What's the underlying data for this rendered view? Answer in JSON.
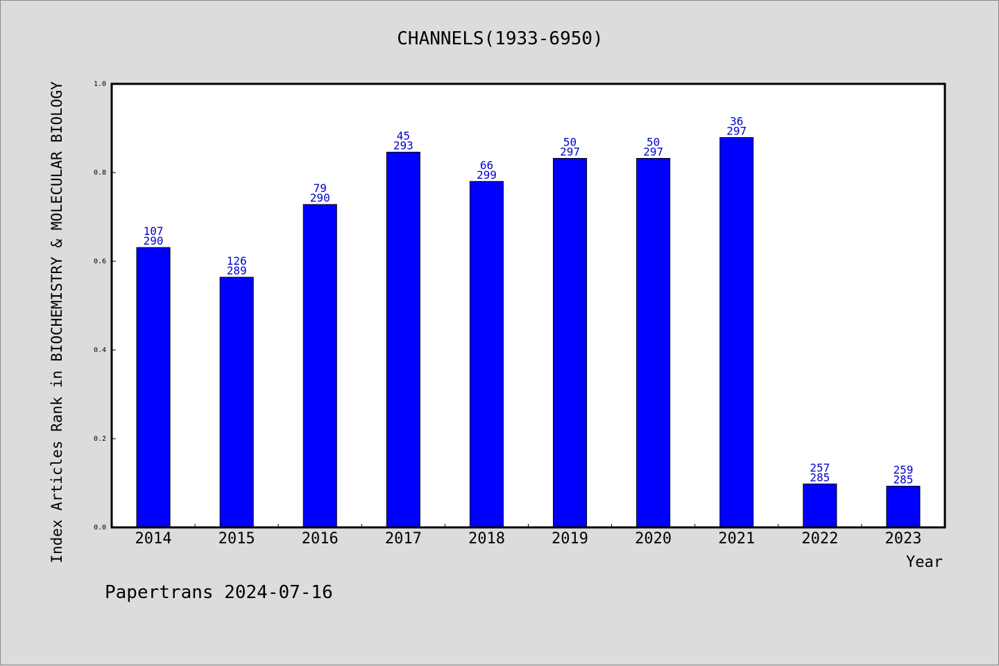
{
  "chart_data": {
    "type": "bar",
    "title": "CHANNELS(1933-6950)",
    "xlabel": "Year",
    "ylabel": "Index Articles Rank in BIOCHEMISTRY & MOLECULAR BIOLOGY",
    "categories": [
      "2014",
      "2015",
      "2016",
      "2017",
      "2018",
      "2019",
      "2020",
      "2021",
      "2022",
      "2023"
    ],
    "values": [
      0.631,
      0.564,
      0.728,
      0.846,
      0.78,
      0.832,
      0.832,
      0.879,
      0.098,
      0.093
    ],
    "labels": [
      [
        "107",
        "290"
      ],
      [
        "126",
        "289"
      ],
      [
        "79",
        "290"
      ],
      [
        "45",
        "293"
      ],
      [
        "66",
        "299"
      ],
      [
        "50",
        "297"
      ],
      [
        "50",
        "297"
      ],
      [
        "36",
        "297"
      ],
      [
        "257",
        "285"
      ],
      [
        "259",
        "285"
      ]
    ],
    "ylim": [
      0.0,
      1.0
    ],
    "yticks": [
      "0.0",
      "0.2",
      "0.4",
      "0.6",
      "0.8",
      "1.0"
    ],
    "grid": false,
    "colors": {
      "bar": "#0000ff",
      "label": "#0000cc",
      "background": "#dcdcdc",
      "plot_background": "#ffffff"
    }
  },
  "footer": "Papertrans 2024-07-16"
}
